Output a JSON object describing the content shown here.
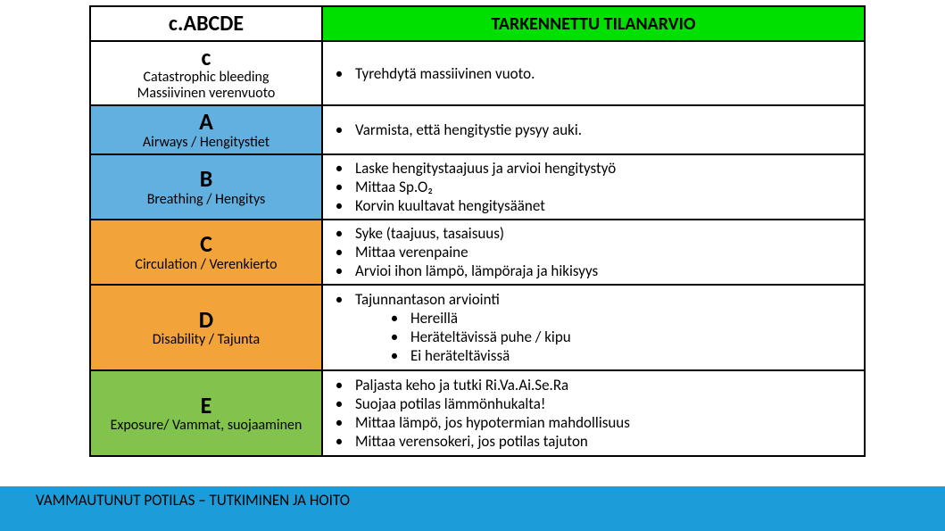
{
  "colors": {
    "header_right_bg": "#00e000",
    "row_c_bg": "#ffffff",
    "row_a_bg": "#62b0df",
    "row_b_bg": "#62b0df",
    "row_cc_bg": "#f2a33a",
    "row_d_bg": "#f2a33a",
    "row_e_bg": "#82c34e",
    "footer_bg": "#1c9dd9",
    "border": "#000000"
  },
  "header": {
    "left": "c.ABCDE",
    "right": "TARKENNETTU TILANARVIO"
  },
  "rows": [
    {
      "key": "c",
      "letter": "c",
      "sub1": "Catastrophic bleeding",
      "sub2": "Massiivinen verenvuoto",
      "bullets": [
        "Tyrehdytä massiivinen vuoto."
      ]
    },
    {
      "key": "A",
      "letter": "A",
      "sub1": "Airways / Hengitystiet",
      "bullets": [
        "Varmista, että hengitystie pysyy auki."
      ]
    },
    {
      "key": "B",
      "letter": "B",
      "sub1": "Breathing / Hengitys",
      "bullets": [
        "Laske hengitystaajuus ja arvioi hengitystyö",
        "Mittaa Sp.O₂",
        "Korvin kuultavat hengitysäänet"
      ]
    },
    {
      "key": "C",
      "letter": "C",
      "sub1": "Circulation / Verenkierto",
      "bullets": [
        "Syke (taajuus, tasaisuus)",
        "Mittaa verenpaine",
        "Arvioi ihon lämpö, lämpöraja ja hikisyys"
      ]
    },
    {
      "key": "D",
      "letter": "D",
      "sub1": "Disability / Tajunta",
      "bullets": [
        "Tajunnantason arviointi"
      ],
      "subbullets": [
        "Hereillä",
        "Heräteltävissä puhe / kipu",
        "Ei heräteltävissä"
      ]
    },
    {
      "key": "E",
      "letter": "E",
      "sub1": "Exposure/ Vammat, suojaaminen",
      "bullets": [
        "Paljasta keho ja tutki Ri.Va.Ai.Se.Ra",
        "Suojaa potilas lämmönhukalta!",
        "Mittaa lämpö, jos hypotermian mahdollisuus",
        "Mittaa verensokeri, jos potilas tajuton"
      ]
    }
  ],
  "footer": "VAMMAUTUNUT POTILAS – TUTKIMINEN JA HOITO"
}
